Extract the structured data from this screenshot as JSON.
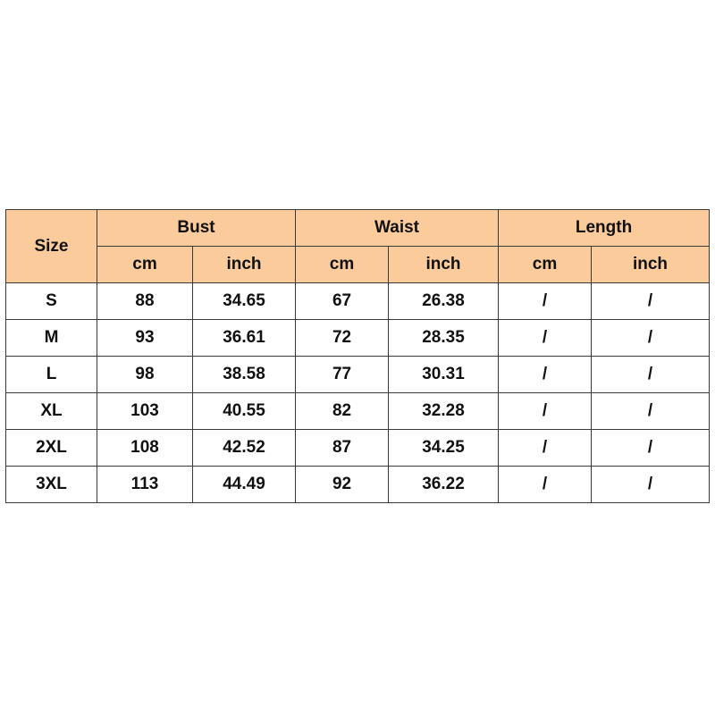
{
  "header": {
    "size_label": "Size",
    "groups": [
      "Bust",
      "Waist",
      "Length"
    ],
    "units": [
      "cm",
      "inch",
      "cm",
      "inch",
      "cm",
      "inch"
    ]
  },
  "header_color": "#fbcb9b",
  "rows": [
    [
      "S",
      "88",
      "34.65",
      "67",
      "26.38",
      "/",
      "/"
    ],
    [
      "M",
      "93",
      "36.61",
      "72",
      "28.35",
      "/",
      "/"
    ],
    [
      "L",
      "98",
      "38.58",
      "77",
      "30.31",
      "/",
      "/"
    ],
    [
      "XL",
      "103",
      "40.55",
      "82",
      "32.28",
      "/",
      "/"
    ],
    [
      "2XL",
      "108",
      "42.52",
      "87",
      "34.25",
      "/",
      "/"
    ],
    [
      "3XL",
      "113",
      "44.49",
      "92",
      "36.22",
      "/",
      "/"
    ]
  ]
}
